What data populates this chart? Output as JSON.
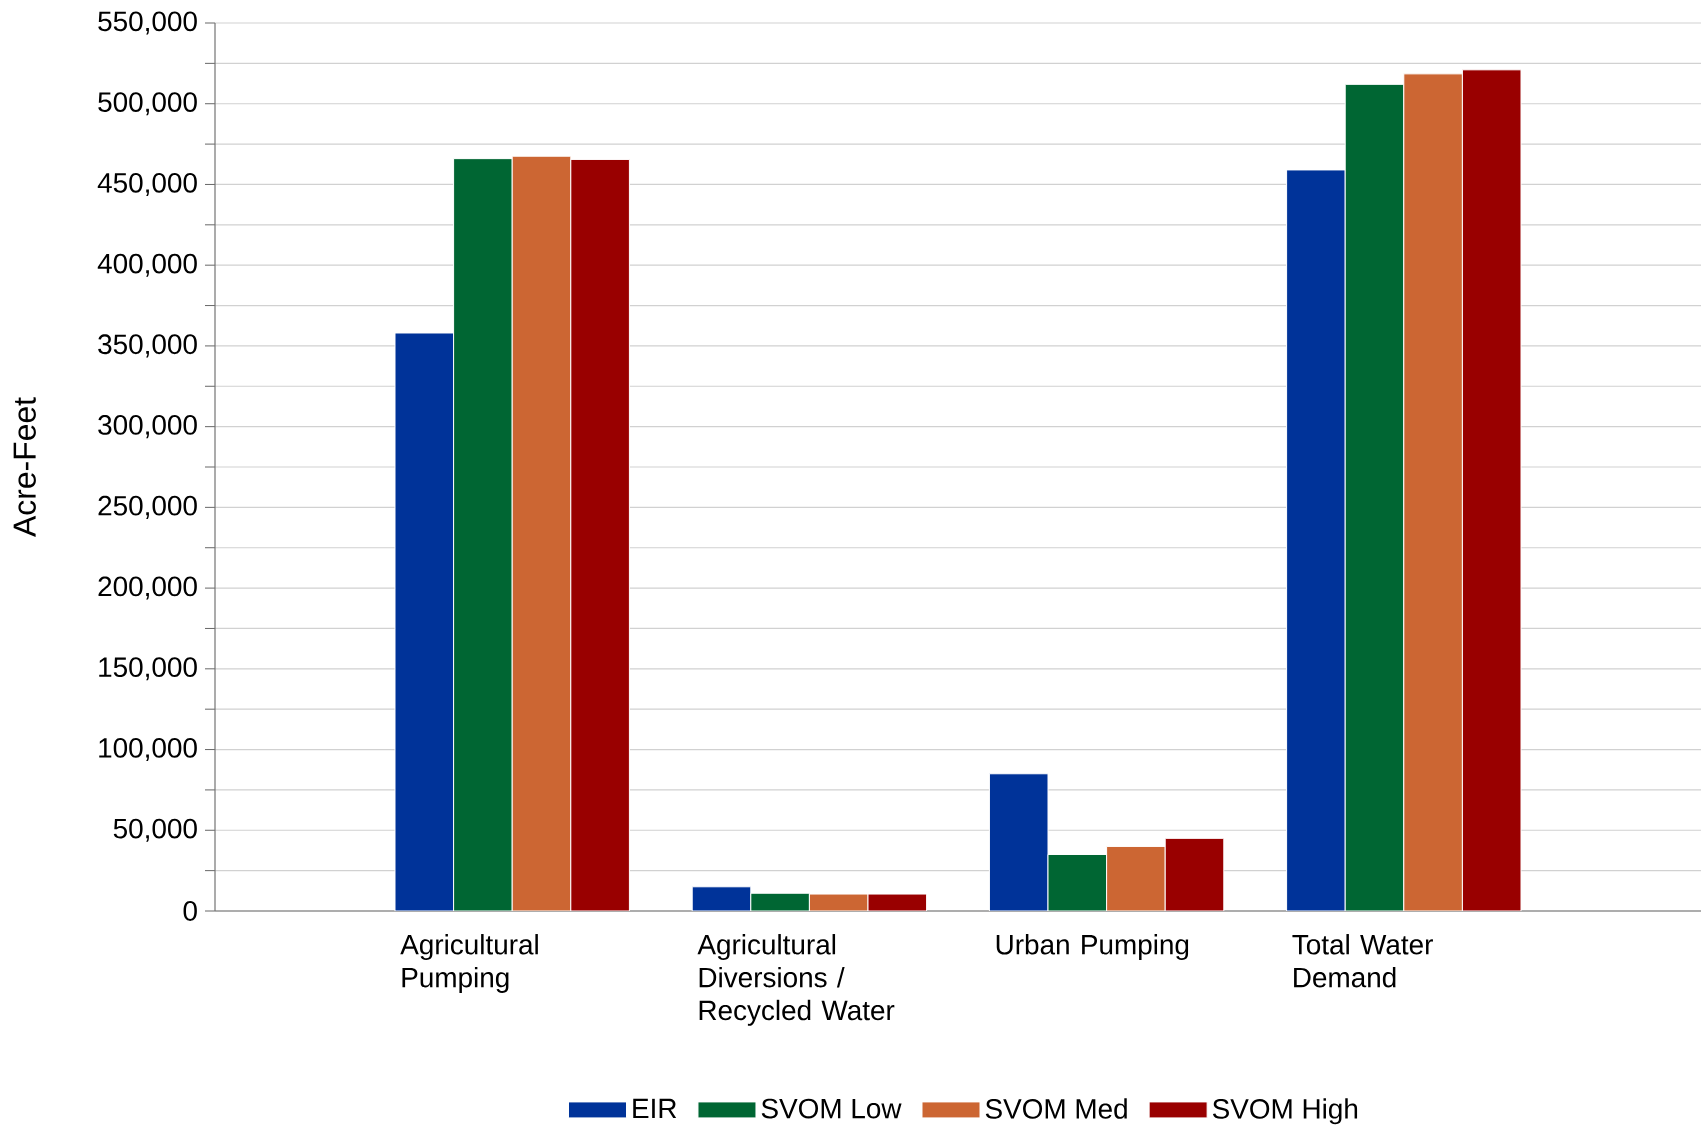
{
  "chart_data": {
    "type": "bar",
    "ylabel": "Acre-Feet",
    "categories": [
      "Agricultural Pumping",
      "Agricultural Diversions / Recycled Water",
      "Urban Pumping",
      "Total Water Demand"
    ],
    "series": [
      {
        "name": "EIR",
        "color": "#003399",
        "values": [
          358000,
          15000,
          85000,
          459000
        ]
      },
      {
        "name": "SVOM Low",
        "color": "#006633",
        "values": [
          466000,
          11000,
          35000,
          512000
        ]
      },
      {
        "name": "SVOM Med",
        "color": "#cc6633",
        "values": [
          467500,
          10500,
          40000,
          518500
        ]
      },
      {
        "name": "SVOM High",
        "color": "#990000",
        "values": [
          465500,
          10500,
          45000,
          521000
        ]
      }
    ],
    "ylim": [
      0,
      550000
    ],
    "yticks": [
      {
        "value": 0,
        "label": "0"
      },
      {
        "value": 50000,
        "label": "50,000"
      },
      {
        "value": 100000,
        "label": "100,000"
      },
      {
        "value": 150000,
        "label": "150,000"
      },
      {
        "value": 200000,
        "label": "200,000"
      },
      {
        "value": 250000,
        "label": "250,000"
      },
      {
        "value": 300000,
        "label": "300,000"
      },
      {
        "value": 350000,
        "label": "350,000"
      },
      {
        "value": 400000,
        "label": "400,000"
      },
      {
        "value": 450000,
        "label": "450,000"
      },
      {
        "value": 500000,
        "label": "500,000"
      },
      {
        "value": 550000,
        "label": "550,000"
      }
    ],
    "grid": "y",
    "legend": "bottom"
  }
}
